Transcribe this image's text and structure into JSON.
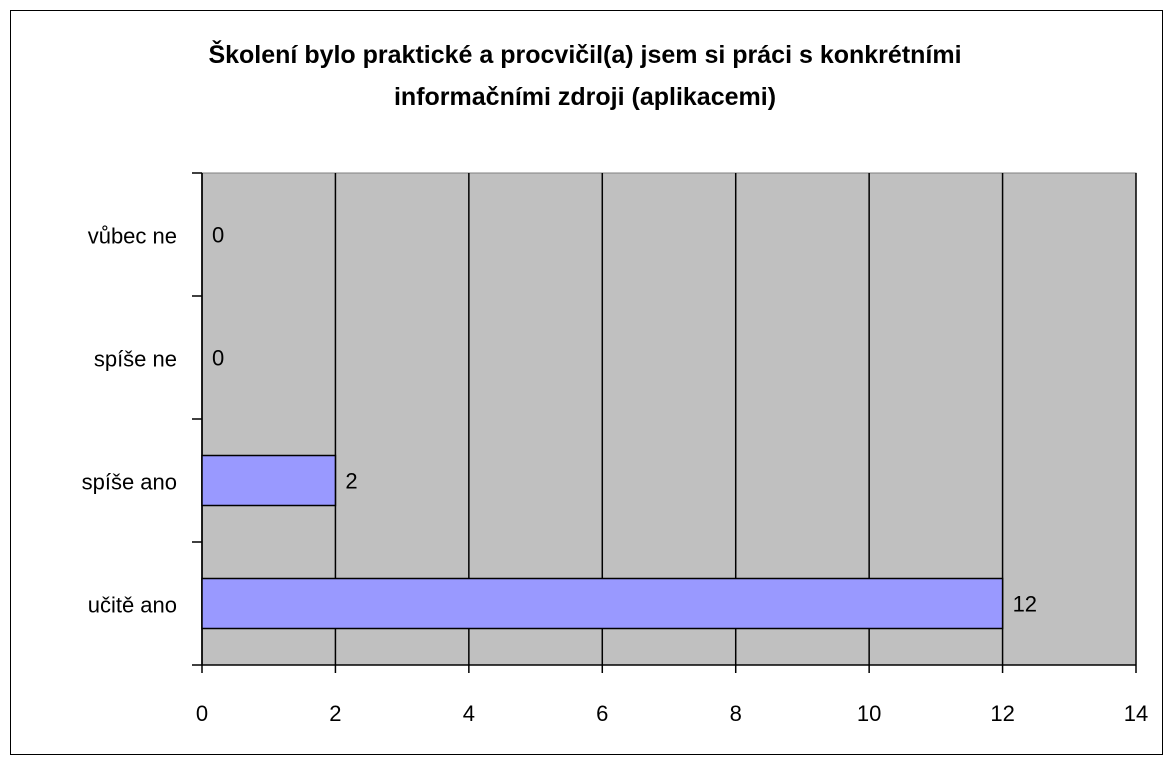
{
  "chart_data": {
    "type": "bar",
    "orientation": "horizontal",
    "title": "Školení bylo praktické a procvičil(a) jsem si práci s konkrétními informačními zdroji (aplikacemi)",
    "categories": [
      "vůbec ne",
      "spíše ne",
      "spíše ano",
      "učitě ano"
    ],
    "values": [
      0,
      0,
      2,
      12
    ],
    "color": "#9999ff",
    "xlim": [
      0,
      14
    ],
    "xticks": [
      0,
      2,
      4,
      6,
      8,
      10,
      12,
      14
    ],
    "grid": true
  }
}
